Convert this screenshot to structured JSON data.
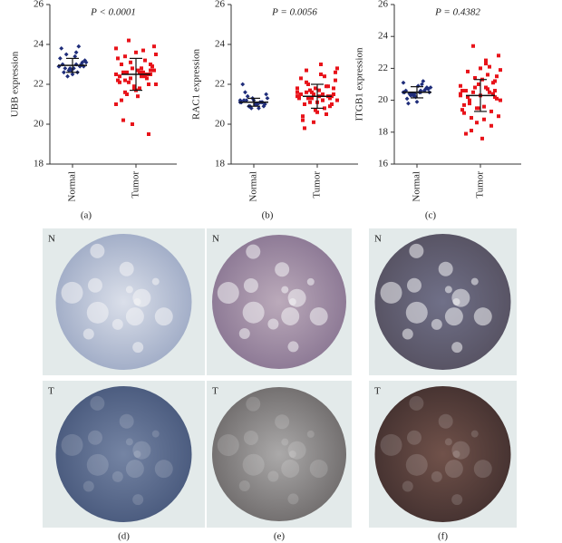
{
  "chart_data": [
    {
      "type": "dot",
      "caption": "(a)",
      "ylabel": "UBB expression",
      "annotation": "P < 0.0001",
      "ylim": [
        18,
        26
      ],
      "yticks": [
        18,
        20,
        22,
        24,
        26
      ],
      "groups": [
        {
          "category": "Normal",
          "color": "#1f2d7a",
          "mean": 22.95,
          "sd": 0.35,
          "values": [
            22.9,
            23.0,
            22.8,
            23.1,
            22.7,
            23.3,
            22.6,
            23.5,
            22.9,
            22.5,
            23.8,
            23.9,
            22.4,
            23.2,
            22.8,
            23.0,
            22.9,
            22.7,
            23.1,
            23.4,
            22.6,
            23.0,
            22.8,
            22.9,
            23.6
          ]
        },
        {
          "category": "Tumor",
          "color": "#e8131a",
          "mean": 22.5,
          "sd": 0.8,
          "values": [
            22.5,
            22.8,
            22.2,
            23.0,
            21.8,
            23.3,
            22.6,
            21.5,
            22.9,
            23.6,
            22.1,
            22.4,
            24.2,
            23.9,
            22.7,
            21.2,
            22.3,
            23.1,
            22.0,
            22.6,
            20.2,
            19.5,
            20.0,
            21.0,
            22.8,
            23.4,
            22.5,
            21.9,
            22.2,
            23.7,
            22.6,
            22.9,
            21.7,
            22.4,
            23.2,
            22.1,
            22.7,
            21.4,
            23.0,
            22.5,
            22.3,
            23.5,
            21.8,
            22.6,
            22.0,
            22.8,
            23.8,
            22.4,
            21.6,
            22.7
          ]
        }
      ]
    },
    {
      "type": "dot",
      "caption": "(b)",
      "ylabel": "RAC1 expression",
      "annotation": "P = 0.0056",
      "ylim": [
        18,
        26
      ],
      "yticks": [
        18,
        20,
        22,
        24,
        26
      ],
      "groups": [
        {
          "category": "Normal",
          "color": "#1f2d7a",
          "mean": 21.1,
          "sd": 0.2,
          "values": [
            21.1,
            21.0,
            21.2,
            20.9,
            21.3,
            21.1,
            20.8,
            21.4,
            21.0,
            21.2,
            22.0,
            21.1,
            20.9,
            21.5,
            21.0,
            21.2,
            21.1,
            20.9,
            21.3,
            21.0,
            21.6,
            21.1,
            20.8,
            21.2,
            21.0
          ]
        },
        {
          "category": "Tumor",
          "color": "#e8131a",
          "mean": 21.4,
          "sd": 0.6,
          "values": [
            21.4,
            21.2,
            21.6,
            21.0,
            21.8,
            21.3,
            20.8,
            22.0,
            21.5,
            21.1,
            22.3,
            20.5,
            21.7,
            22.6,
            21.4,
            20.2,
            21.9,
            21.3,
            22.8,
            23.0,
            19.8,
            20.9,
            21.5,
            21.6,
            21.2,
            22.1,
            21.0,
            20.7,
            21.4,
            22.4,
            21.3,
            21.8,
            20.6,
            21.5,
            21.9,
            21.1,
            22.2,
            21.7,
            20.4,
            21.4,
            21.6,
            21.2,
            22.5,
            21.0,
            21.3,
            20.1,
            21.8,
            21.5,
            22.7,
            21.4
          ]
        }
      ]
    },
    {
      "type": "dot",
      "caption": "(c)",
      "ylabel": "ITGB1 expression",
      "annotation": "P = 0.4382",
      "ylim": [
        16,
        26
      ],
      "yticks": [
        16,
        18,
        20,
        22,
        24,
        26
      ],
      "groups": [
        {
          "category": "Normal",
          "color": "#1f2d7a",
          "mean": 20.5,
          "sd": 0.35,
          "values": [
            20.5,
            20.6,
            20.4,
            20.8,
            20.2,
            20.5,
            21.0,
            20.3,
            20.7,
            19.9,
            20.6,
            21.2,
            20.4,
            20.5,
            20.9,
            20.1,
            20.6,
            20.3,
            20.8,
            20.5,
            19.8,
            20.7,
            20.4,
            21.1,
            20.5
          ]
        },
        {
          "category": "Tumor",
          "color": "#e8131a",
          "mean": 20.3,
          "sd": 1.0,
          "values": [
            20.3,
            20.8,
            19.8,
            21.2,
            19.5,
            20.6,
            21.6,
            18.9,
            20.1,
            22.0,
            19.2,
            20.5,
            23.4,
            22.8,
            17.6,
            17.9,
            18.4,
            21.4,
            20.0,
            19.6,
            21.8,
            20.4,
            18.6,
            20.9,
            22.3,
            19.9,
            20.2,
            21.0,
            19.4,
            20.7,
            18.1,
            21.5,
            20.3,
            19.7,
            22.1,
            20.5,
            19.0,
            21.3,
            20.6,
            19.3,
            20.8,
            21.9,
            18.8,
            20.2,
            21.1,
            19.5,
            20.4,
            22.5,
            20.0,
            20.6
          ]
        }
      ]
    }
  ],
  "tissue_panels": [
    {
      "caption": "(d)",
      "labels": [
        "N",
        "T"
      ]
    },
    {
      "caption": "(e)",
      "labels": [
        "N",
        "T"
      ]
    },
    {
      "caption": "(f)",
      "labels": [
        "N",
        "T"
      ]
    }
  ]
}
